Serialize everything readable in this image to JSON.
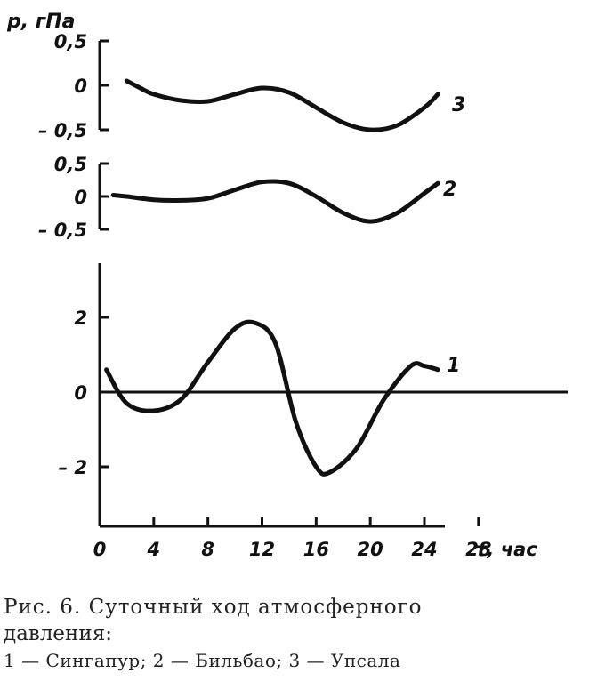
{
  "chart_data": {
    "type": "line",
    "y_axis_title": "p, гПа",
    "x_axis_title": "τ, час",
    "x_ticks": [
      0,
      4,
      8,
      12,
      16,
      20,
      24,
      28
    ],
    "xlim": [
      0,
      28
    ],
    "panels": [
      {
        "label": "3",
        "ylim": [
          -0.5,
          0.5
        ],
        "y_ticks": [
          "0,5",
          "0",
          "– 0,5"
        ],
        "y_tick_values": [
          0.5,
          0,
          -0.5
        ],
        "x": [
          2,
          3,
          4,
          6,
          8,
          10,
          12,
          14,
          16,
          18,
          20,
          22,
          24,
          25
        ],
        "y": [
          0.05,
          -0.03,
          -0.1,
          -0.17,
          -0.18,
          -0.1,
          -0.03,
          -0.08,
          -0.25,
          -0.42,
          -0.5,
          -0.45,
          -0.25,
          -0.1
        ]
      },
      {
        "label": "2",
        "ylim": [
          -0.5,
          0.5
        ],
        "y_ticks": [
          "0,5",
          "0",
          "– 0,5"
        ],
        "y_tick_values": [
          0.5,
          0,
          -0.5
        ],
        "x": [
          1,
          2,
          4,
          6,
          8,
          10,
          12,
          14,
          16,
          18,
          20,
          22,
          24,
          25
        ],
        "y": [
          0.02,
          0.0,
          -0.05,
          -0.06,
          -0.03,
          0.1,
          0.22,
          0.2,
          0.0,
          -0.25,
          -0.38,
          -0.25,
          0.05,
          0.2
        ]
      },
      {
        "label": "1",
        "ylim": [
          -2.5,
          2.5
        ],
        "y_ticks": [
          "2",
          "0",
          "– 2"
        ],
        "y_tick_values": [
          2,
          0,
          -2
        ],
        "x": [
          0.5,
          2,
          4,
          6,
          8,
          10,
          11.5,
          13,
          14.5,
          16,
          17,
          19,
          21,
          23,
          24,
          25
        ],
        "y": [
          0.6,
          -0.3,
          -0.5,
          -0.2,
          0.8,
          1.7,
          1.85,
          1.3,
          -0.8,
          -2.0,
          -2.15,
          -1.5,
          -0.2,
          0.7,
          0.7,
          0.6
        ],
        "zero_line": true
      }
    ]
  },
  "caption": {
    "line1": "Рис. 6. Суточный ход атмосферного",
    "line2": "давления:",
    "line3": "1 — Сингапур;  2 — Бильбао;  3 — Упсала"
  }
}
